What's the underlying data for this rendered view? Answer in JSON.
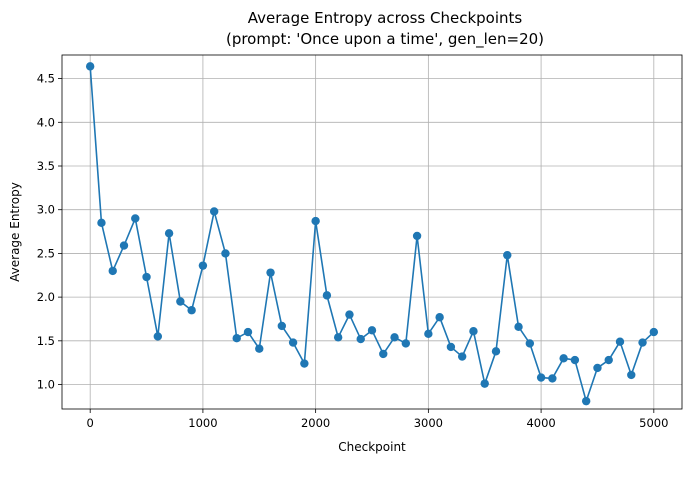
{
  "chart_data": {
    "type": "line",
    "title": "Average Entropy across Checkpoints",
    "subtitle": "(prompt: 'Once upon a time', gen_len=20)",
    "xlabel": "Checkpoint",
    "ylabel": "Average Entropy",
    "xlim": [
      -250,
      5250
    ],
    "ylim": [
      0.72,
      4.77
    ],
    "xticks": [
      0,
      1000,
      2000,
      3000,
      4000,
      5000
    ],
    "yticks": [
      1.0,
      1.5,
      2.0,
      2.5,
      3.0,
      3.5,
      4.0,
      4.5
    ],
    "grid": true,
    "color": "#1f77b4",
    "marker": "circle",
    "x": [
      0,
      100,
      200,
      300,
      400,
      500,
      600,
      700,
      800,
      900,
      1000,
      1100,
      1200,
      1300,
      1400,
      1500,
      1600,
      1700,
      1800,
      1900,
      2000,
      2100,
      2200,
      2300,
      2400,
      2500,
      2600,
      2700,
      2800,
      2900,
      3000,
      3100,
      3200,
      3300,
      3400,
      3500,
      3600,
      3700,
      3800,
      3900,
      4000,
      4100,
      4200,
      4300,
      4400,
      4500,
      4600,
      4700,
      4800,
      4900,
      5000
    ],
    "y": [
      4.64,
      2.85,
      2.3,
      2.59,
      2.9,
      2.23,
      1.55,
      2.73,
      1.95,
      1.85,
      2.36,
      2.98,
      2.5,
      1.53,
      1.6,
      1.41,
      2.28,
      1.67,
      1.48,
      1.24,
      2.87,
      2.02,
      1.54,
      1.8,
      1.52,
      1.62,
      1.35,
      1.54,
      1.47,
      2.7,
      1.58,
      1.77,
      1.43,
      1.32,
      1.61,
      1.01,
      1.38,
      2.48,
      1.66,
      1.47,
      1.08,
      1.07,
      1.3,
      1.28,
      0.81,
      1.19,
      1.28,
      1.49,
      1.11,
      1.48,
      1.6
    ]
  }
}
